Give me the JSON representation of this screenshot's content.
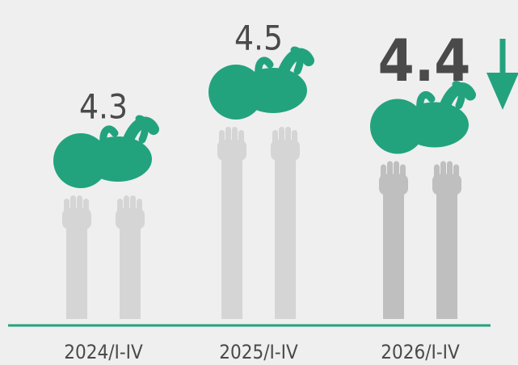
{
  "chart_data": {
    "type": "pictogram",
    "categories": [
      "2024/I-IV",
      "2025/I-IV",
      "2026/I-IV"
    ],
    "values": [
      4.3,
      4.5,
      4.4
    ],
    "color": "#22a37e"
  }
}
